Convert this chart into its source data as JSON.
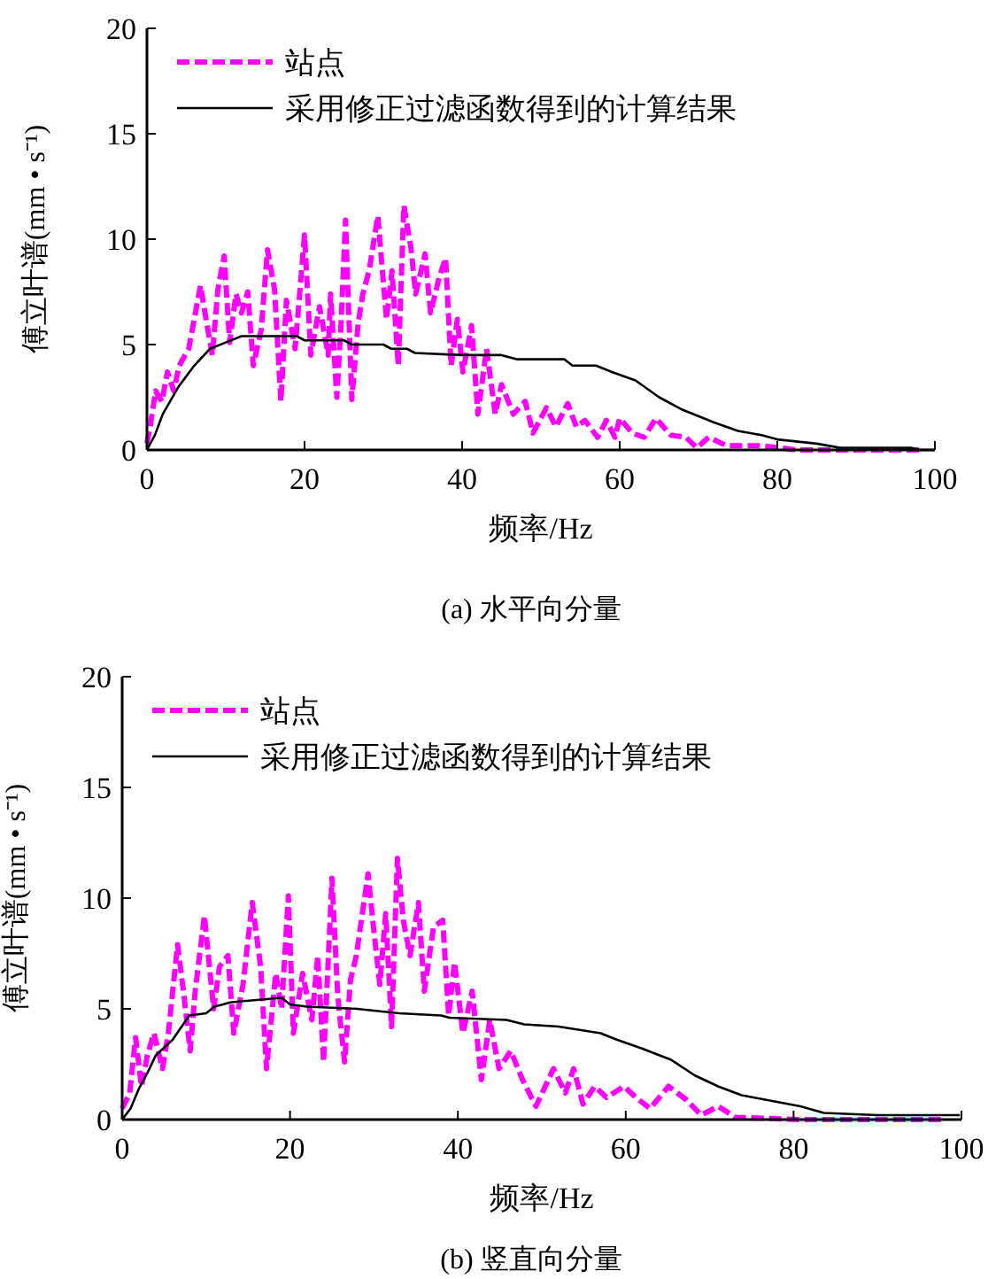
{
  "chart_data": [
    {
      "type": "line",
      "xlabel": "频率/Hz",
      "ylabel": "傅立叶谱(mm • s⁻¹)",
      "annotations": [
        "(a)  水平向分量"
      ],
      "xlim": [
        0,
        100
      ],
      "ylim": [
        0,
        20
      ],
      "xticks": [
        0,
        20,
        40,
        60,
        80,
        100
      ],
      "yticks": [
        0,
        5,
        10,
        15,
        20
      ],
      "legend": "top left",
      "series": [
        {
          "name": "站点",
          "color": "#ff00ff",
          "line_style": "dashed",
          "x": [
            0,
            0.4,
            1.1,
            1.9,
            2.6,
            3.4,
            4.1,
            5.3,
            6,
            6.8,
            7.5,
            8.3,
            9,
            9.8,
            10.5,
            11.3,
            12,
            12.8,
            13.5,
            14.5,
            15.3,
            16.2,
            17,
            17.7,
            18.8,
            20,
            20.8,
            21.9,
            23,
            23.3,
            24.1,
            24.6,
            25.2,
            26,
            26.8,
            27.4,
            28.2,
            29.3,
            30.4,
            31.1,
            31.9,
            32.6,
            33.5,
            34.1,
            35.3,
            36,
            37.1,
            37.9,
            38.6,
            39.4,
            40.1,
            41.2,
            42,
            43.1,
            44.2,
            45,
            46.5,
            48,
            49,
            50.7,
            51.9,
            53.4,
            54.5,
            55.6,
            57.2,
            58.3,
            59.4,
            60,
            61.6,
            63.1,
            64.6,
            66.5,
            68.4,
            69.8,
            71.3,
            73.6,
            78,
            82.5,
            90,
            98
          ],
          "values": [
            0.3,
            1.1,
            2.8,
            2.3,
            3.7,
            2.8,
            4,
            4.8,
            6.2,
            7.8,
            6.2,
            4.5,
            7.6,
            9.2,
            5.1,
            7.4,
            6.5,
            7.5,
            4,
            5.7,
            9.5,
            7.6,
            2.3,
            7.1,
            4.8,
            10.2,
            4.5,
            6.8,
            4.5,
            7.4,
            2.5,
            5.7,
            10.9,
            2.4,
            6,
            7.4,
            8.5,
            11.1,
            6.2,
            8.5,
            4,
            11.6,
            9.6,
            7.4,
            9.3,
            6.5,
            8.2,
            9.1,
            4,
            6.2,
            3.7,
            5.9,
            1.7,
            4.8,
            1.7,
            3.1,
            1.7,
            2.3,
            0.8,
            2,
            1.1,
            2.2,
            1.1,
            1.4,
            0.6,
            1.4,
            0.6,
            1.5,
            0.8,
            0.6,
            1.5,
            0.7,
            0.6,
            0.1,
            0.6,
            0.2,
            0.2,
            0,
            0,
            0
          ]
        },
        {
          "name": "采用修正过滤函数得到的计算结果",
          "color": "#000000",
          "line_style": "solid",
          "x": [
            0,
            1,
            2,
            4,
            6,
            8,
            10,
            12,
            19,
            20,
            25,
            26,
            30,
            31,
            33,
            34,
            40,
            45,
            47,
            53,
            54,
            57,
            59,
            62,
            65,
            68,
            72,
            75,
            78,
            80,
            85,
            88,
            97,
            98,
            100
          ],
          "values": [
            0,
            0.7,
            1.7,
            3,
            4,
            4.8,
            5.1,
            5.4,
            5.4,
            5.2,
            5.2,
            5,
            5,
            4.8,
            4.8,
            4.6,
            4.5,
            4.5,
            4.3,
            4.3,
            4,
            4,
            3.7,
            3.3,
            2.5,
            1.9,
            1.3,
            0.9,
            0.7,
            0.5,
            0.3,
            0.1,
            0.1,
            0,
            0
          ]
        }
      ]
    },
    {
      "type": "line",
      "xlabel": "频率/Hz",
      "ylabel": "傅立叶谱(mm • s⁻¹)",
      "annotations": [
        "(b)  竖直向分量"
      ],
      "xlim": [
        0,
        100
      ],
      "ylim": [
        0,
        20
      ],
      "xticks": [
        0,
        20,
        40,
        60,
        80,
        100
      ],
      "yticks": [
        0,
        5,
        10,
        15,
        20
      ],
      "legend": "top left",
      "series": [
        {
          "name": "站点",
          "color": "#ff00ff",
          "line_style": "dashed",
          "x": [
            0,
            0.9,
            1.6,
            2.3,
            3,
            3.8,
            4.8,
            5.5,
            6.6,
            7.3,
            8.1,
            8.7,
            9.8,
            10.9,
            11.6,
            12.6,
            13.3,
            14.4,
            15.5,
            16.5,
            17.2,
            18.3,
            19,
            19.8,
            20.4,
            21.5,
            22.6,
            23.3,
            24,
            25,
            25.7,
            26.5,
            27.2,
            27.9,
            29.3,
            30,
            30.7,
            31.4,
            32.1,
            32.8,
            33.5,
            34.3,
            35.3,
            36,
            37.1,
            38.2,
            38.9,
            39.6,
            40.6,
            41.7,
            42.8,
            43.8,
            44.9,
            46.3,
            47.7,
            49.3,
            51.4,
            52.8,
            53.8,
            54.9,
            56.3,
            57.7,
            59.8,
            61.2,
            62.9,
            65.1,
            67.2,
            69,
            71,
            73.1,
            80.8,
            97.7
          ],
          "values": [
            0.5,
            1.2,
            3.7,
            1.5,
            2.9,
            3.9,
            2.3,
            3.9,
            7.9,
            5.8,
            3.1,
            5.8,
            9.2,
            5,
            6.9,
            7.4,
            3.9,
            6.1,
            9.8,
            6.9,
            2.3,
            6.6,
            5,
            10.1,
            3.9,
            6.6,
            4.5,
            7.4,
            2.6,
            10.9,
            5.5,
            2.6,
            6.3,
            7.4,
            11.1,
            8.5,
            6.1,
            9.3,
            4.2,
            11.8,
            9,
            7.4,
            9.8,
            5.8,
            8.7,
            9,
            4.7,
            7.1,
            3.9,
            5.8,
            1.8,
            4.5,
            2.3,
            3.1,
            1.8,
            0.6,
            2.3,
            1.2,
            2.3,
            0.7,
            1.5,
            1,
            1.5,
            1,
            0.5,
            1.5,
            0.9,
            0.2,
            0.6,
            0.1,
            0,
            0
          ]
        },
        {
          "name": "采用修正过滤函数得到的计算结果",
          "color": "#000000",
          "line_style": "solid",
          "x": [
            0,
            1,
            2,
            3,
            4,
            6,
            8,
            10,
            11,
            13,
            19,
            20,
            22,
            28,
            33,
            38,
            39,
            45.8,
            47.9,
            52,
            57,
            59,
            62,
            65.4,
            68.2,
            71,
            73.8,
            78,
            80.8,
            83.6,
            90,
            99.8
          ],
          "values": [
            0,
            0.5,
            1.4,
            2.1,
            2.9,
            3.6,
            4.7,
            4.8,
            5.1,
            5.3,
            5.5,
            5.2,
            5.1,
            5,
            4.8,
            4.7,
            4.6,
            4.5,
            4.3,
            4.2,
            3.9,
            3.6,
            3.2,
            2.7,
            2,
            1.5,
            1.1,
            0.8,
            0.6,
            0.3,
            0.2,
            0.2
          ]
        }
      ]
    }
  ]
}
